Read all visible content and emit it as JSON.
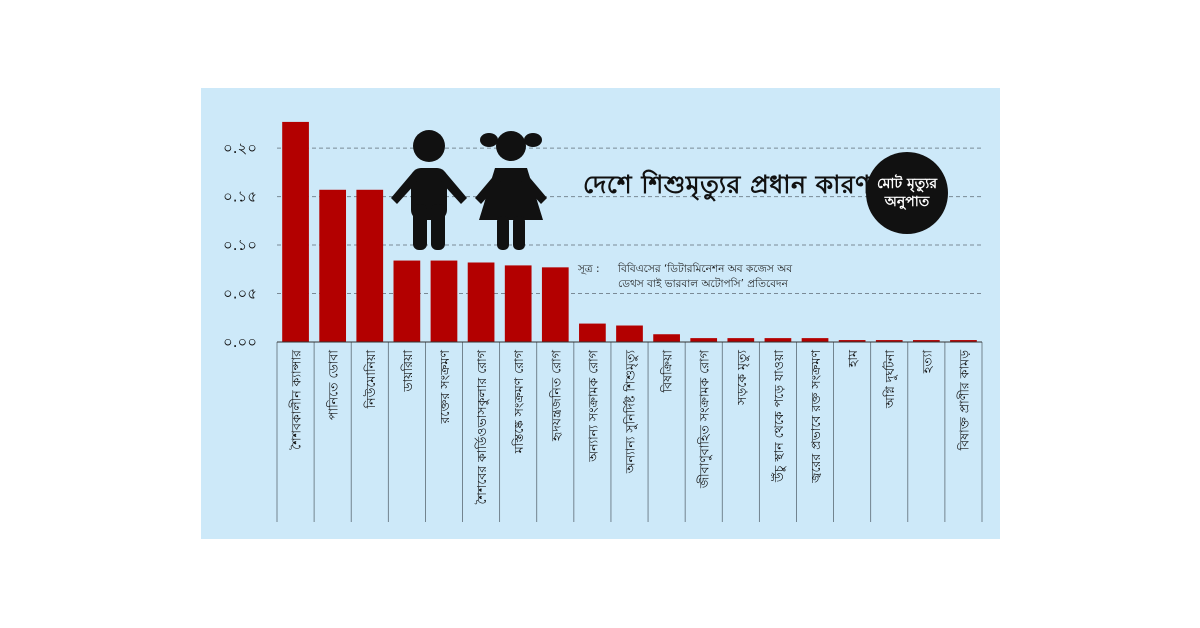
{
  "chart_data": {
    "type": "bar",
    "title": "দেশে শিশুমৃত্যুর প্রধান কারণ",
    "ylabel": "মোট মৃত্যুর অনুপাত",
    "ylim": [
      0,
      0.23
    ],
    "yticks": [
      0,
      0.05,
      0.1,
      0.15,
      0.2
    ],
    "ytick_labels": [
      "০.০০",
      "০.০৫",
      "০.১০",
      "০.১৫",
      "০.২০"
    ],
    "grid": "horizontal-dashed",
    "bar_color": "#b30000",
    "categories": [
      "শৈশবকালীন ক্যান্সার",
      "পানিতে ডোবা",
      "নিউমোনিয়া",
      "ডায়রিয়া",
      "রক্তের সংক্রমণ",
      "শৈশবের কার্ডিওভাসকুলার রোগ",
      "মস্তিষ্কে সংক্রমণ রোগ",
      "হৃদযন্ত্রজনিত রোগ",
      "অন্যান্য সংক্রামক রোগ",
      "অন্যান্য সুনির্দিষ্ট শিশুমৃত্যু",
      "বিষক্রিয়া",
      "জীবাণুবাহিত সংক্রামক রোগ",
      "সড়কে মৃত্যু",
      "উঁচু স্থান থেকে পড়ে যাওয়া",
      "জ্বরের প্রভাবে রক্ত সংক্রমণ",
      "হাম",
      "অগ্নি দুর্ঘটনা",
      "হত্যা",
      "বিষাক্ত প্রাণীর কামড়"
    ],
    "values": [
      0.227,
      0.157,
      0.157,
      0.084,
      0.084,
      0.082,
      0.079,
      0.077,
      0.019,
      0.017,
      0.008,
      0.004,
      0.004,
      0.004,
      0.004,
      0.002,
      0.002,
      0.002,
      0.002
    ]
  },
  "source": {
    "label": "সূত্র :",
    "line1": "বিবিএসের ‘ডিটারমিনেশন অব কজেস অব",
    "line2": "ডেথস বাই ভারবাল অটোপসি’ প্রতিবেদন"
  },
  "badge": {
    "line1": "মোট মৃত্যুর",
    "line2": "অনুপাত"
  },
  "colors": {
    "panel": "#cde9f9",
    "bar": "#b30000",
    "gridline": "#7a8a96",
    "text": "#111111"
  },
  "icons": [
    "boy-icon",
    "girl-icon"
  ]
}
